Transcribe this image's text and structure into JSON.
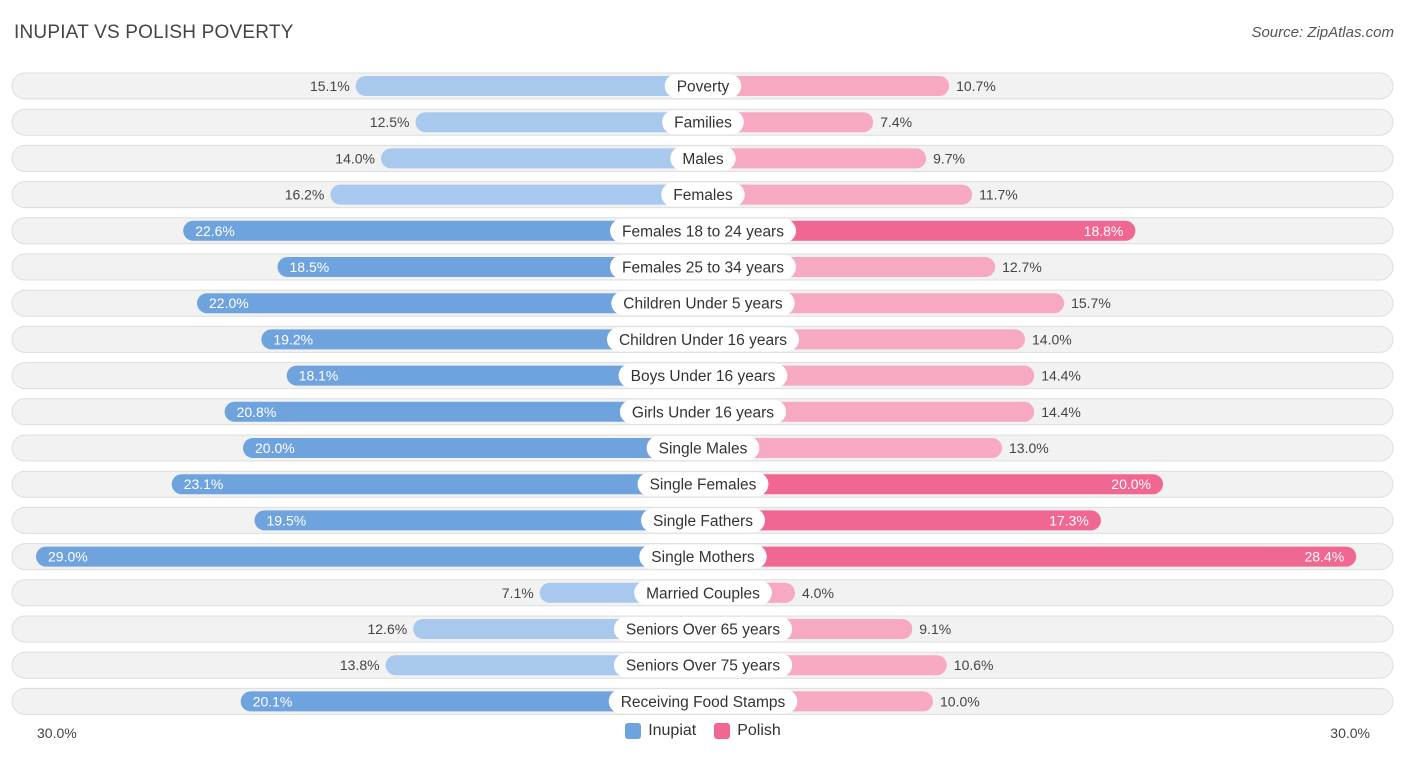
{
  "header": {
    "title": "INUPIAT VS POLISH POVERTY",
    "source": "Source: ZipAtlas.com"
  },
  "colors": {
    "inupiat": "#6fa3de",
    "inupiat_light": "#a9c8ee",
    "polish": "#f06892",
    "polish_light": "#f7a9c1",
    "row_bg": "#f2f2f2"
  },
  "chart_data": {
    "type": "bar",
    "orientation": "horizontal-diverging",
    "title": "INUPIAT VS POLISH POVERTY",
    "unit": "%",
    "xlim": [
      0,
      30
    ],
    "axis_labels": {
      "left": "30.0%",
      "right": "30.0%"
    },
    "legend": [
      "Inupiat",
      "Polish"
    ],
    "categories": [
      "Poverty",
      "Families",
      "Males",
      "Females",
      "Females 18 to 24 years",
      "Females 25 to 34 years",
      "Children Under 5 years",
      "Children Under 16 years",
      "Boys Under 16 years",
      "Girls Under 16 years",
      "Single Males",
      "Single Females",
      "Single Fathers",
      "Single Mothers",
      "Married Couples",
      "Seniors Over 65 years",
      "Seniors Over 75 years",
      "Receiving Food Stamps"
    ],
    "series": [
      {
        "name": "Inupiat",
        "values": [
          15.1,
          12.5,
          14.0,
          16.2,
          22.6,
          18.5,
          22.0,
          19.2,
          18.1,
          20.8,
          20.0,
          23.1,
          19.5,
          29.0,
          7.1,
          12.6,
          13.8,
          20.1
        ],
        "labels": [
          "15.1%",
          "12.5%",
          "14.0%",
          "16.2%",
          "22.6%",
          "18.5%",
          "22.0%",
          "19.2%",
          "18.1%",
          "20.8%",
          "20.0%",
          "23.1%",
          "19.5%",
          "29.0%",
          "7.1%",
          "12.6%",
          "13.8%",
          "20.1%"
        ]
      },
      {
        "name": "Polish",
        "values": [
          10.7,
          7.4,
          9.7,
          11.7,
          18.8,
          12.7,
          15.7,
          14.0,
          14.4,
          14.4,
          13.0,
          20.0,
          17.3,
          28.4,
          4.0,
          9.1,
          10.6,
          10.0
        ],
        "labels": [
          "10.7%",
          "7.4%",
          "9.7%",
          "11.7%",
          "18.8%",
          "12.7%",
          "15.7%",
          "14.0%",
          "14.4%",
          "14.4%",
          "13.0%",
          "20.0%",
          "17.3%",
          "28.4%",
          "4.0%",
          "9.1%",
          "10.6%",
          "10.0%"
        ]
      }
    ]
  }
}
